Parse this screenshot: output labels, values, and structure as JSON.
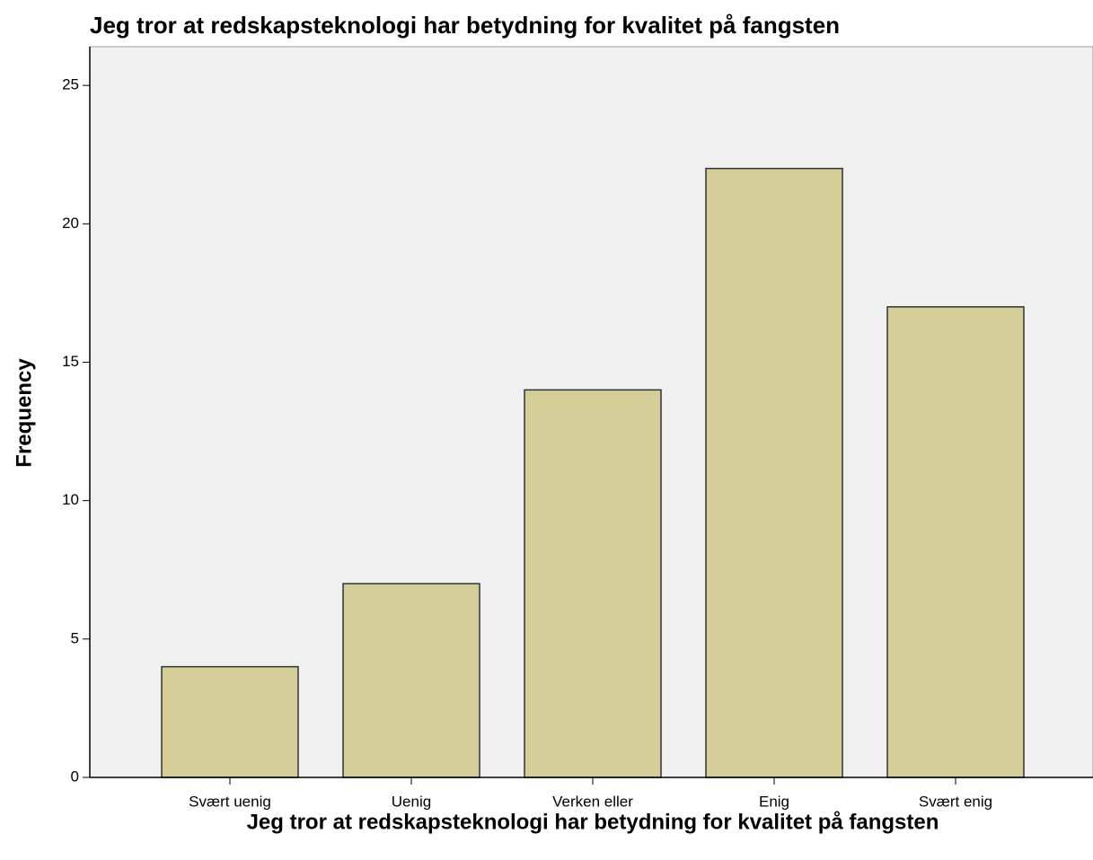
{
  "chart_data": {
    "type": "bar",
    "title": "Jeg tror at redskapsteknologi har betydning for kvalitet på fangsten",
    "x_label": "Jeg tror at redskapsteknologi har betydning for kvalitet på fangsten",
    "y_label": "Frequency",
    "categories": [
      "Svært uenig",
      "Uenig",
      "Verken eller",
      "Enig",
      "Svært enig"
    ],
    "values": [
      4,
      7,
      14,
      22,
      17
    ],
    "color": "#d3ce97",
    "ylim": [
      0,
      26.4
    ],
    "yticks": [
      0,
      5,
      10,
      15,
      20,
      25
    ],
    "grid": false
  }
}
